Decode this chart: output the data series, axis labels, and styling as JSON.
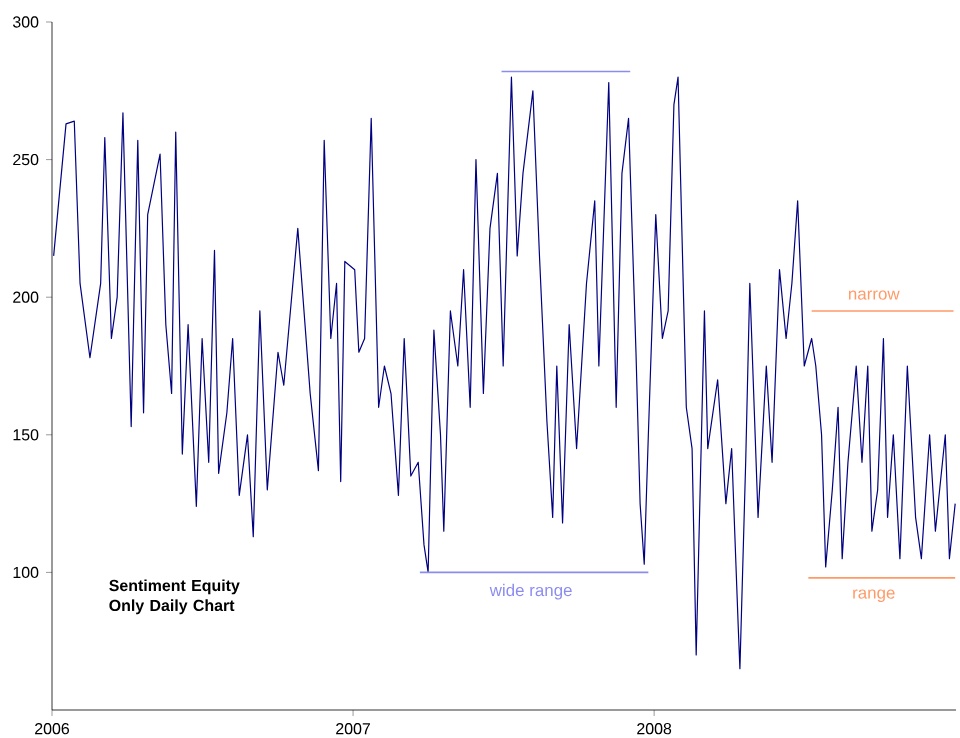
{
  "chart_data": {
    "type": "line",
    "title": "Sentiment Equity Only Daily Chart",
    "xlim": [
      "2006",
      "2009"
    ],
    "xticks": [
      "2006",
      "2007",
      "2008"
    ],
    "ylim": [
      50,
      300
    ],
    "yticks": [
      100,
      150,
      200,
      250,
      300
    ],
    "grid": false,
    "marker": "none",
    "line_style": "solid",
    "series": [
      {
        "color": "#000080",
        "x": [
          "2006-01-03",
          "2006-01-18",
          "2006-01-28",
          "2006-02-04",
          "2006-02-16",
          "2006-03-01",
          "2006-03-06",
          "2006-03-14",
          "2006-03-21",
          "2006-03-28",
          "2006-04-07",
          "2006-04-15",
          "2006-04-22",
          "2006-04-27",
          "2006-05-12",
          "2006-05-19",
          "2006-05-26",
          "2006-05-31",
          "2006-06-08",
          "2006-06-15",
          "2006-06-25",
          "2006-07-02",
          "2006-07-10",
          "2006-07-17",
          "2006-07-22",
          "2006-08-01",
          "2006-08-08",
          "2006-08-16",
          "2006-08-26",
          "2006-09-02",
          "2006-09-10",
          "2006-09-19",
          "2006-10-02",
          "2006-10-09",
          "2006-10-26",
          "2006-11-10",
          "2006-11-20",
          "2006-11-27",
          "2006-12-05",
          "2006-12-12",
          "2006-12-17",
          "2006-12-22",
          "2007-01-03",
          "2007-01-08",
          "2007-01-15",
          "2007-01-23",
          "2007-02-01",
          "2007-02-08",
          "2007-02-16",
          "2007-02-25",
          "2007-03-04",
          "2007-03-12",
          "2007-03-21",
          "2007-03-28",
          "2007-04-02",
          "2007-04-09",
          "2007-04-17",
          "2007-04-21",
          "2007-04-29",
          "2007-05-08",
          "2007-05-15",
          "2007-05-23",
          "2007-05-30",
          "2007-06-08",
          "2007-06-16",
          "2007-06-25",
          "2007-07-02",
          "2007-07-12",
          "2007-07-19",
          "2007-07-26",
          "2007-08-03",
          "2007-08-07",
          "2007-08-15",
          "2007-08-24",
          "2007-08-31",
          "2007-09-05",
          "2007-09-12",
          "2007-09-20",
          "2007-09-29",
          "2007-10-11",
          "2007-10-21",
          "2007-10-26",
          "2007-11-07",
          "2007-11-16",
          "2007-11-23",
          "2007-12-01",
          "2007-12-10",
          "2007-12-15",
          "2007-12-20",
          "2007-12-25",
          "2008-01-03",
          "2008-01-11",
          "2008-01-18",
          "2008-01-25",
          "2008-01-30",
          "2008-02-09",
          "2008-02-16",
          "2008-02-21",
          "2008-03-02",
          "2008-03-06",
          "2008-03-18",
          "2008-03-28",
          "2008-04-04",
          "2008-04-12",
          "2008-04-14",
          "2008-04-21",
          "2008-04-26",
          "2008-05-06",
          "2008-05-16",
          "2008-05-23",
          "2008-06-01",
          "2008-06-09",
          "2008-06-16",
          "2008-06-23",
          "2008-07-01",
          "2008-07-10",
          "2008-07-15",
          "2008-07-22",
          "2008-07-27",
          "2008-08-04",
          "2008-08-11",
          "2008-08-16",
          "2008-08-23",
          "2008-09-02",
          "2008-09-09",
          "2008-09-16",
          "2008-09-21",
          "2008-09-28",
          "2008-10-05",
          "2008-10-10",
          "2008-10-17",
          "2008-10-25",
          "2008-11-03",
          "2008-11-13",
          "2008-11-20",
          "2008-11-30",
          "2008-12-07",
          "2008-12-19",
          "2008-12-24",
          "2008-12-31"
        ],
        "values": [
          215,
          263,
          264,
          205,
          178,
          205,
          258,
          185,
          200,
          267,
          153,
          257,
          158,
          230,
          252,
          190,
          165,
          260,
          143,
          190,
          124,
          185,
          140,
          217,
          136,
          158,
          185,
          128,
          150,
          113,
          195,
          130,
          180,
          168,
          225,
          165,
          137,
          257,
          185,
          205,
          133,
          213,
          210,
          180,
          185,
          265,
          160,
          175,
          165,
          128,
          185,
          135,
          140,
          110,
          100,
          188,
          150,
          115,
          195,
          175,
          210,
          160,
          250,
          165,
          225,
          245,
          175,
          280,
          215,
          245,
          265,
          275,
          215,
          155,
          120,
          175,
          118,
          190,
          145,
          205,
          235,
          175,
          278,
          160,
          245,
          265,
          180,
          125,
          103,
          150,
          230,
          185,
          195,
          270,
          280,
          160,
          145,
          70,
          195,
          145,
          170,
          125,
          145,
          80,
          65,
          140,
          205,
          120,
          175,
          140,
          210,
          185,
          205,
          235,
          175,
          185,
          175,
          150,
          102,
          130,
          160,
          105,
          140,
          175,
          140,
          175,
          115,
          130,
          185,
          120,
          150,
          105,
          175,
          120,
          105,
          150,
          115,
          150,
          105,
          125
        ]
      },
      {
        "type": "line",
        "color": "#8c8cf0",
        "x": [
          "2007-06-30",
          "2007-12-03"
        ],
        "values": [
          282,
          282
        ]
      },
      {
        "type": "line",
        "color": "#8c8cf0",
        "x": [
          "2007-03-23",
          "2007-12-25"
        ],
        "values": [
          100,
          100
        ]
      },
      {
        "type": "line",
        "color": "#ff9966",
        "x": [
          "2008-07-10",
          "2008-12-29"
        ],
        "values": [
          195,
          195
        ]
      },
      {
        "type": "line",
        "color": "#ff9966",
        "x": [
          "2008-07-06",
          "2008-12-31"
        ],
        "values": [
          98,
          98
        ]
      }
    ],
    "annotations": [
      "wide range",
      "narrow",
      "range"
    ]
  }
}
